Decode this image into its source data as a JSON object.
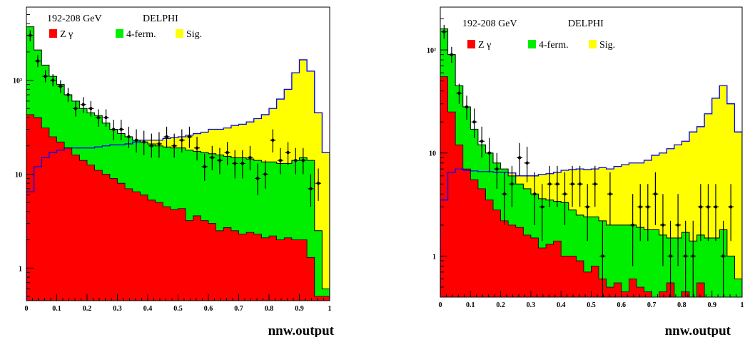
{
  "colors": {
    "zgamma": "#ff0000",
    "fourferm": "#00ee00",
    "signal": "#ffff00",
    "signal_outline": "#0000ff",
    "data_points": "#000000"
  },
  "chart_data": [
    {
      "type": "histogram",
      "energy_label": "192-208 GeV",
      "experiment": "DELPHI",
      "xlabel": "nnw.output",
      "ylabel": "",
      "yscale": "log",
      "xlim": [
        0,
        1
      ],
      "ylim": [
        0.45,
        600
      ],
      "xticks": [
        "0",
        "0.1",
        "0.2",
        "0.3",
        "0.4",
        "0.5",
        "0.6",
        "0.7",
        "0.8",
        "0.9",
        "1"
      ],
      "yticks": [
        {
          "value": 1,
          "label": "1"
        },
        {
          "value": 10,
          "label": "10"
        },
        {
          "value": 100,
          "label": "10²"
        }
      ],
      "legend": [
        {
          "key": "zgamma",
          "label": "Z γ"
        },
        {
          "key": "fourferm",
          "label": "4-ferm."
        },
        {
          "key": "signal",
          "label": "Sig."
        }
      ],
      "bin_edges": [
        0,
        0.025,
        0.05,
        0.075,
        0.1,
        0.125,
        0.15,
        0.175,
        0.2,
        0.225,
        0.25,
        0.275,
        0.3,
        0.325,
        0.35,
        0.375,
        0.4,
        0.425,
        0.45,
        0.475,
        0.5,
        0.525,
        0.55,
        0.575,
        0.6,
        0.625,
        0.65,
        0.675,
        0.7,
        0.725,
        0.75,
        0.775,
        0.8,
        0.825,
        0.85,
        0.875,
        0.9,
        0.925,
        0.95,
        0.975,
        1.0
      ],
      "zgamma": [
        43,
        40,
        31,
        25,
        22,
        19,
        16,
        14,
        12.5,
        11,
        10,
        9,
        8,
        7,
        6.5,
        6,
        5.3,
        5,
        4.5,
        4.2,
        4.3,
        3.2,
        3.6,
        3.2,
        3.0,
        2.5,
        2.7,
        2.5,
        2.3,
        2.4,
        2.3,
        2.1,
        2.2,
        2.0,
        2.1,
        2.0,
        2.0,
        1.3,
        0.5,
        0.5
      ],
      "fourferm": [
        370,
        210,
        145,
        110,
        90,
        70,
        60,
        50,
        45,
        42,
        35,
        30,
        27,
        25,
        23,
        22,
        21,
        20,
        19.5,
        19,
        19,
        18,
        17.5,
        17,
        16.5,
        16,
        15.5,
        15,
        15,
        14.5,
        14,
        13.5,
        13.5,
        13,
        13,
        14,
        15,
        14,
        2.5,
        0.6
      ],
      "signal_total": [
        6.5,
        12,
        15,
        17,
        18,
        19,
        19,
        19,
        19,
        19.5,
        20,
        20.5,
        20.5,
        21,
        22,
        23,
        23,
        23,
        24,
        24.5,
        25,
        26,
        27,
        28,
        30,
        30,
        31,
        33,
        34,
        36,
        39,
        43,
        50,
        63,
        80,
        120,
        165,
        125,
        45,
        17
      ],
      "data_points": [
        {
          "x": 0.0125,
          "y": 300,
          "lo": 260,
          "hi": 340
        },
        {
          "x": 0.0375,
          "y": 160,
          "lo": 138,
          "hi": 185
        },
        {
          "x": 0.0625,
          "y": 110,
          "lo": 95,
          "hi": 128
        },
        {
          "x": 0.0875,
          "y": 100,
          "lo": 86,
          "hi": 116
        },
        {
          "x": 0.1125,
          "y": 86,
          "lo": 73,
          "hi": 100
        },
        {
          "x": 0.1375,
          "y": 70,
          "lo": 59,
          "hi": 83
        },
        {
          "x": 0.1625,
          "y": 50,
          "lo": 41,
          "hi": 60
        },
        {
          "x": 0.1875,
          "y": 55,
          "lo": 45,
          "hi": 66
        },
        {
          "x": 0.2125,
          "y": 50,
          "lo": 41,
          "hi": 60
        },
        {
          "x": 0.2375,
          "y": 40,
          "lo": 32,
          "hi": 49
        },
        {
          "x": 0.2625,
          "y": 40,
          "lo": 32,
          "hi": 49
        },
        {
          "x": 0.2875,
          "y": 30,
          "lo": 23,
          "hi": 38
        },
        {
          "x": 0.3125,
          "y": 30,
          "lo": 23,
          "hi": 38
        },
        {
          "x": 0.3375,
          "y": 25,
          "lo": 19,
          "hi": 32
        },
        {
          "x": 0.3625,
          "y": 23,
          "lo": 17,
          "hi": 30
        },
        {
          "x": 0.3875,
          "y": 22,
          "lo": 16,
          "hi": 29
        },
        {
          "x": 0.4125,
          "y": 20,
          "lo": 15,
          "hi": 27
        },
        {
          "x": 0.4375,
          "y": 21,
          "lo": 15,
          "hi": 28
        },
        {
          "x": 0.4625,
          "y": 25,
          "lo": 19,
          "hi": 32
        },
        {
          "x": 0.4875,
          "y": 20,
          "lo": 15,
          "hi": 27
        },
        {
          "x": 0.5125,
          "y": 23,
          "lo": 17,
          "hi": 30
        },
        {
          "x": 0.5375,
          "y": 25,
          "lo": 19,
          "hi": 32
        },
        {
          "x": 0.5625,
          "y": 19,
          "lo": 14,
          "hi": 25
        },
        {
          "x": 0.5875,
          "y": 12,
          "lo": 8.5,
          "hi": 16.5
        },
        {
          "x": 0.6125,
          "y": 15,
          "lo": 11,
          "hi": 20
        },
        {
          "x": 0.6375,
          "y": 14,
          "lo": 10,
          "hi": 19
        },
        {
          "x": 0.6625,
          "y": 17,
          "lo": 12.5,
          "hi": 22
        },
        {
          "x": 0.6875,
          "y": 13,
          "lo": 9,
          "hi": 18
        },
        {
          "x": 0.7125,
          "y": 13,
          "lo": 9,
          "hi": 18
        },
        {
          "x": 0.7375,
          "y": 15,
          "lo": 11,
          "hi": 20
        },
        {
          "x": 0.7625,
          "y": 9,
          "lo": 6,
          "hi": 13
        },
        {
          "x": 0.7875,
          "y": 10,
          "lo": 7,
          "hi": 14
        },
        {
          "x": 0.8125,
          "y": 23,
          "lo": 17,
          "hi": 30
        },
        {
          "x": 0.8375,
          "y": 14,
          "lo": 10,
          "hi": 19
        },
        {
          "x": 0.8625,
          "y": 17,
          "lo": 12.5,
          "hi": 22
        },
        {
          "x": 0.8875,
          "y": 14,
          "lo": 10,
          "hi": 19
        },
        {
          "x": 0.9125,
          "y": 14,
          "lo": 10,
          "hi": 19
        },
        {
          "x": 0.9375,
          "y": 7,
          "lo": 4.5,
          "hi": 10
        },
        {
          "x": 0.9625,
          "y": 8,
          "lo": 5.2,
          "hi": 11.5
        }
      ]
    },
    {
      "type": "histogram",
      "energy_label": "192-208 GeV",
      "experiment": "DELPHI",
      "xlabel": "nnw.output",
      "ylabel": "",
      "yscale": "log",
      "xlim": [
        0,
        1
      ],
      "ylim": [
        0.4,
        260
      ],
      "xticks": [
        "0",
        "0.1",
        "0.2",
        "0.3",
        "0.4",
        "0.5",
        "0.6",
        "0.7",
        "0.8",
        "0.9",
        "1"
      ],
      "yticks": [
        {
          "value": 1,
          "label": "1"
        },
        {
          "value": 10,
          "label": "10"
        },
        {
          "value": 100,
          "label": "10²"
        }
      ],
      "legend": [
        {
          "key": "zgamma",
          "label": "Z γ"
        },
        {
          "key": "fourferm",
          "label": "4-ferm."
        },
        {
          "key": "signal",
          "label": "Sig."
        }
      ],
      "bin_edges": [
        0,
        0.025,
        0.05,
        0.075,
        0.1,
        0.125,
        0.15,
        0.175,
        0.2,
        0.225,
        0.25,
        0.275,
        0.3,
        0.325,
        0.35,
        0.375,
        0.4,
        0.425,
        0.45,
        0.475,
        0.5,
        0.525,
        0.55,
        0.575,
        0.6,
        0.625,
        0.65,
        0.675,
        0.7,
        0.725,
        0.75,
        0.775,
        0.8,
        0.825,
        0.85,
        0.875,
        0.9,
        0.925,
        0.95,
        0.975,
        1.0
      ],
      "zgamma": [
        55,
        25,
        12,
        7,
        5.5,
        4.5,
        3.5,
        2.8,
        2.2,
        2.0,
        1.9,
        1.6,
        1.5,
        1.2,
        1.3,
        1.4,
        1.0,
        1.0,
        0.9,
        0.7,
        0.8,
        0.6,
        0.5,
        0.55,
        0.45,
        0.6,
        0.5,
        0.45,
        0.4,
        0.45,
        0.55,
        0.35,
        0.45,
        0.3,
        0.55,
        0.3,
        0.3,
        0.3,
        0.3,
        0.3
      ],
      "fourferm": [
        160,
        90,
        45,
        28,
        17,
        12,
        10,
        8,
        7,
        6,
        5,
        4.5,
        4,
        3.6,
        3.5,
        3.4,
        3.3,
        2.8,
        2.5,
        2.4,
        2.4,
        2.2,
        2.0,
        2.0,
        2.0,
        2.0,
        1.9,
        1.8,
        1.8,
        1.6,
        1.5,
        1.5,
        1.7,
        1.4,
        1.6,
        1.5,
        1.5,
        1.8,
        1.0,
        0.6
      ],
      "signal_total": [
        3.5,
        6.5,
        7,
        6.8,
        6.7,
        6.6,
        6.6,
        6.5,
        6.5,
        6.4,
        6.0,
        6.0,
        6.0,
        6.2,
        6.3,
        6.5,
        6.8,
        6.9,
        7.0,
        6.9,
        7.0,
        7.2,
        7.0,
        7.4,
        7.7,
        8.0,
        8.0,
        8.5,
        9.5,
        10,
        11,
        12,
        13,
        16,
        18,
        24,
        34,
        45,
        30,
        16
      ],
      "data_points": [
        {
          "x": 0.0125,
          "y": 150,
          "lo": 128,
          "hi": 175
        },
        {
          "x": 0.0375,
          "y": 90,
          "lo": 75,
          "hi": 107
        },
        {
          "x": 0.0625,
          "y": 38,
          "lo": 30,
          "hi": 47
        },
        {
          "x": 0.0875,
          "y": 28,
          "lo": 21,
          "hi": 36
        },
        {
          "x": 0.1125,
          "y": 20,
          "lo": 14,
          "hi": 27
        },
        {
          "x": 0.1375,
          "y": 13,
          "lo": 9,
          "hi": 18
        },
        {
          "x": 0.1625,
          "y": 10,
          "lo": 6.5,
          "hi": 14
        },
        {
          "x": 0.1875,
          "y": 7,
          "lo": 4.5,
          "hi": 10
        },
        {
          "x": 0.2125,
          "y": 4,
          "lo": 2,
          "hi": 6.5
        },
        {
          "x": 0.2375,
          "y": 5,
          "lo": 3,
          "hi": 7.5
        },
        {
          "x": 0.2625,
          "y": 9,
          "lo": 6,
          "hi": 12.5
        },
        {
          "x": 0.2875,
          "y": 8,
          "lo": 5.2,
          "hi": 11.5
        },
        {
          "x": 0.3125,
          "y": 4,
          "lo": 2,
          "hi": 6.5
        },
        {
          "x": 0.3375,
          "y": 3,
          "lo": 1.4,
          "hi": 5
        },
        {
          "x": 0.3625,
          "y": 5,
          "lo": 3,
          "hi": 7.5
        },
        {
          "x": 0.3875,
          "y": 5,
          "lo": 3,
          "hi": 7.5
        },
        {
          "x": 0.4125,
          "y": 4,
          "lo": 2,
          "hi": 6.5
        },
        {
          "x": 0.4375,
          "y": 5,
          "lo": 3,
          "hi": 7.5
        },
        {
          "x": 0.4625,
          "y": 5,
          "lo": 3,
          "hi": 7.5
        },
        {
          "x": 0.4875,
          "y": 3,
          "lo": 1.4,
          "hi": 5
        },
        {
          "x": 0.5125,
          "y": 5,
          "lo": 3,
          "hi": 7.5
        },
        {
          "x": 0.5375,
          "y": 1,
          "lo": 0.4,
          "hi": 2.2
        },
        {
          "x": 0.5625,
          "y": 4,
          "lo": 2,
          "hi": 6.5
        },
        {
          "x": 0.6375,
          "y": 2,
          "lo": 0.8,
          "hi": 4
        },
        {
          "x": 0.6625,
          "y": 3,
          "lo": 1.4,
          "hi": 5
        },
        {
          "x": 0.6875,
          "y": 3,
          "lo": 1.4,
          "hi": 5
        },
        {
          "x": 0.7125,
          "y": 4,
          "lo": 2,
          "hi": 6.5
        },
        {
          "x": 0.7375,
          "y": 2,
          "lo": 0.8,
          "hi": 4
        },
        {
          "x": 0.7625,
          "y": 1,
          "lo": 0.4,
          "hi": 2.2
        },
        {
          "x": 0.7875,
          "y": 2,
          "lo": 0.8,
          "hi": 4
        },
        {
          "x": 0.8125,
          "y": 1,
          "lo": 0.4,
          "hi": 2.2
        },
        {
          "x": 0.8375,
          "y": 1,
          "lo": 0.4,
          "hi": 2.2
        },
        {
          "x": 0.8625,
          "y": 3,
          "lo": 1.4,
          "hi": 5
        },
        {
          "x": 0.8875,
          "y": 3,
          "lo": 1.4,
          "hi": 5
        },
        {
          "x": 0.9125,
          "y": 3,
          "lo": 1.4,
          "hi": 5
        },
        {
          "x": 0.9375,
          "y": 1,
          "lo": 0.4,
          "hi": 2.2
        },
        {
          "x": 0.9625,
          "y": 3,
          "lo": 1.4,
          "hi": 5
        }
      ]
    }
  ]
}
